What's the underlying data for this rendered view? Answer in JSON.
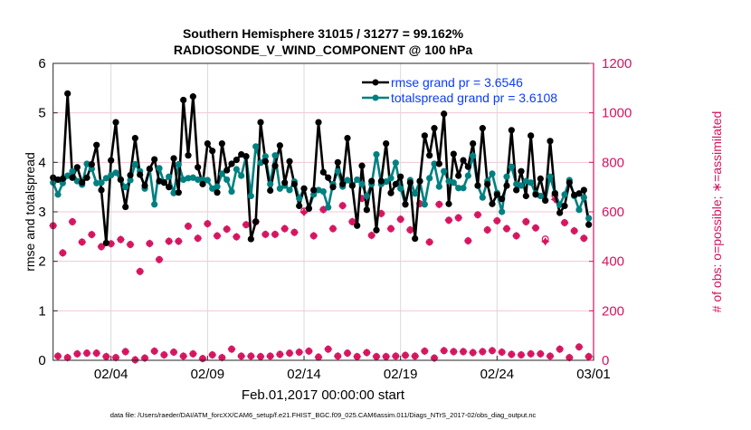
{
  "chart_data": {
    "type": "line",
    "title": [
      "Southern Hemisphere 31015 / 31277 = 99.162%",
      "RADIOSONDE_V_WIND_COMPONENT @ 100 hPa"
    ],
    "xlabel": "Feb.01,2017 00:00:00 start",
    "ylabel": "rmse and totalspread",
    "ylabel_right": "# of obs: o=possible; ∗=assimilated",
    "footer": "data file: /Users/raeder/DAI/ATM_forcXX/CAM6_setup/f.e21.FHIST_BGC.f09_025.CAM6assim.011/Diags_NTrS_2017-02/obs_diag_output.nc",
    "x_unit": "days since Feb.01,2017 00:00",
    "x_start": 0,
    "x_step_days": 0.25,
    "xlim": [
      0,
      28
    ],
    "x_ticks": [
      {
        "value": 3,
        "label": "02/04"
      },
      {
        "value": 8,
        "label": "02/09"
      },
      {
        "value": 13,
        "label": "02/14"
      },
      {
        "value": 18,
        "label": "02/19"
      },
      {
        "value": 23,
        "label": "02/24"
      },
      {
        "value": 28,
        "label": "03/01"
      }
    ],
    "ylim": [
      0,
      6
    ],
    "y_ticks": [
      "0",
      "1",
      "2",
      "3",
      "4",
      "5",
      "6"
    ],
    "ylim_right": [
      0,
      1200
    ],
    "y_ticks_right": [
      "0",
      "200",
      "400",
      "600",
      "800",
      "1000",
      "1200"
    ],
    "grid": true,
    "legend_position": "top-right",
    "colors": {
      "rmse": "#000000",
      "spread": "#008080",
      "obs": "#d6145f",
      "legend_text": "#0a3cff"
    },
    "series": [
      {
        "name": "rmse grand pr = 3.6546",
        "axis": "left",
        "values": [
          3.69,
          3.65,
          3.67,
          5.39,
          3.69,
          3.9,
          3.59,
          3.69,
          3.96,
          4.35,
          3.44,
          2.37,
          4.04,
          4.81,
          3.65,
          3.1,
          3.74,
          4.49,
          3.75,
          3.53,
          3.87,
          4.06,
          3.62,
          3.59,
          3.5,
          4.08,
          3.39,
          5.26,
          4.14,
          5.33,
          3.9,
          3.56,
          4.38,
          4.23,
          3.39,
          4.38,
          3.84,
          3.97,
          4.05,
          4.16,
          4.12,
          2.45,
          2.8,
          4.81,
          4.02,
          3.43,
          3.93,
          4.34,
          3.59,
          4.02,
          3.56,
          3.12,
          3.47,
          3.07,
          3.44,
          4.81,
          3.8,
          3.69,
          3.5,
          4.0,
          3.56,
          4.49,
          3.53,
          2.72,
          3.93,
          3.04,
          3.62,
          2.63,
          3.62,
          4.38,
          3.38,
          3.56,
          3.71,
          3.15,
          3.59,
          2.46,
          3.62,
          4.54,
          4.14,
          4.69,
          3.97,
          4.98,
          3.16,
          4.17,
          3.73,
          4.04,
          3.91,
          4.38,
          3.53,
          4.69,
          3.56,
          3.16,
          3.35,
          3.26,
          3.53,
          4.65,
          3.44,
          3.82,
          3.32,
          4.54,
          3.35,
          3.67,
          3.23,
          4.43,
          3.37,
          2.98,
          3.12,
          3.59,
          3.34,
          3.37,
          3.44,
          2.74
        ]
      },
      {
        "name": "totalspread grand pr = 3.6108",
        "axis": "left",
        "values": [
          3.59,
          3.35,
          3.58,
          3.73,
          3.82,
          3.62,
          3.55,
          3.97,
          3.87,
          3.58,
          3.59,
          3.68,
          3.74,
          3.79,
          3.65,
          3.5,
          3.64,
          3.96,
          3.82,
          3.47,
          3.86,
          3.15,
          3.88,
          3.59,
          3.71,
          3.38,
          3.96,
          3.65,
          3.68,
          3.69,
          3.65,
          3.65,
          3.64,
          3.47,
          3.51,
          3.77,
          3.65,
          3.41,
          3.86,
          3.73,
          4.12,
          3.32,
          4.32,
          3.99,
          4.12,
          3.56,
          4.14,
          3.47,
          3.53,
          3.44,
          3.61,
          3.27,
          3.47,
          3.06,
          3.35,
          3.44,
          3.41,
          3.09,
          3.56,
          3.82,
          3.51,
          3.64,
          3.53,
          3.65,
          3.56,
          3.32,
          3.56,
          4.16,
          3.56,
          3.61,
          3.68,
          3.99,
          3.47,
          3.15,
          3.64,
          3.37,
          3.62,
          3.15,
          3.68,
          3.97,
          3.51,
          3.82,
          3.62,
          3.59,
          3.48,
          3.48,
          3.73,
          4.13,
          3.53,
          3.29,
          3.62,
          3.77,
          3.38,
          3.0,
          3.71,
          3.91,
          3.56,
          3.53,
          3.62,
          3.59,
          3.37,
          3.32,
          3.23,
          3.71,
          3.38,
          3.14,
          3.35,
          3.64,
          3.32,
          3.04,
          3.29,
          2.87
        ]
      },
      {
        "name": "obs possible",
        "axis": "right",
        "marker": "o",
        "values": [
          544,
          17,
          434,
          11,
          560,
          26,
          478,
          29,
          508,
          29,
          459,
          15,
          471,
          11,
          488,
          35,
          468,
          2,
          359,
          9,
          472,
          37,
          407,
          22,
          481,
          33,
          481,
          17,
          542,
          26,
          493,
          7,
          552,
          22,
          503,
          11,
          530,
          45,
          499,
          17,
          548,
          17,
          560,
          15,
          509,
          17,
          509,
          24,
          532,
          29,
          517,
          33,
          603,
          37,
          503,
          13,
          609,
          45,
          532,
          17,
          625,
          29,
          560,
          15,
          654,
          31,
          505,
          15,
          593,
          15,
          532,
          17,
          570,
          20,
          527,
          17,
          633,
          37,
          478,
          9,
          630,
          39,
          566,
          35,
          576,
          35,
          483,
          31,
          588,
          35,
          527,
          39,
          564,
          33,
          532,
          24,
          503,
          22,
          560,
          26,
          535,
          26,
          490,
          17,
          666,
          45,
          556,
          11,
          523,
          54,
          493,
          15
        ]
      },
      {
        "name": "obs assimilated",
        "axis": "right",
        "marker": "*",
        "values": [
          544,
          17,
          434,
          11,
          560,
          26,
          478,
          29,
          508,
          29,
          459,
          15,
          471,
          11,
          488,
          35,
          468,
          2,
          359,
          9,
          472,
          37,
          407,
          22,
          481,
          33,
          481,
          17,
          542,
          26,
          493,
          7,
          552,
          22,
          503,
          11,
          530,
          45,
          499,
          17,
          548,
          17,
          560,
          15,
          509,
          17,
          509,
          24,
          532,
          29,
          517,
          33,
          598,
          37,
          503,
          13,
          609,
          45,
          532,
          17,
          625,
          29,
          560,
          15,
          654,
          31,
          505,
          15,
          593,
          15,
          532,
          17,
          570,
          20,
          527,
          17,
          633,
          37,
          478,
          9,
          630,
          39,
          566,
          35,
          576,
          35,
          483,
          31,
          588,
          35,
          527,
          39,
          564,
          33,
          532,
          24,
          503,
          22,
          560,
          26,
          535,
          26,
          480,
          17,
          650,
          45,
          556,
          11,
          523,
          54,
          493,
          15
        ]
      }
    ]
  }
}
